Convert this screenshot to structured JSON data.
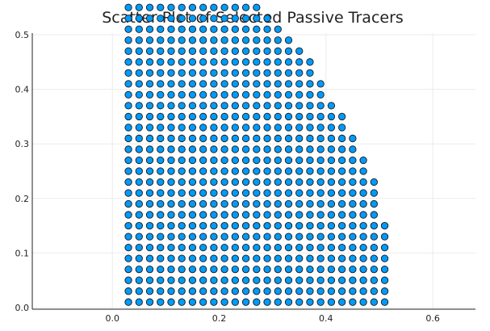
{
  "chart_data": {
    "type": "scatter",
    "title": "Scatter Plot of Selected Passive Tracers",
    "xlabel": "",
    "ylabel": "",
    "xlim": [
      -0.15,
      0.68
    ],
    "ylim": [
      -0.003,
      0.503
    ],
    "x_ticks": [
      0.0,
      0.2,
      0.4,
      0.6
    ],
    "x_tick_labels": [
      "0.0",
      "0.2",
      "0.4",
      "0.6"
    ],
    "y_ticks": [
      0.0,
      0.1,
      0.2,
      0.3,
      0.4,
      0.5
    ],
    "y_tick_labels": [
      "0.0",
      "0.1",
      "0.2",
      "0.3",
      "0.4",
      "0.5"
    ],
    "grid": true,
    "legend": "none",
    "marker_color": "#009af9",
    "grid_points": {
      "x_start": 0.03,
      "y_start": 0.01,
      "step": 0.02,
      "x_max_per_row": [
        0.51,
        0.51,
        0.51,
        0.51,
        0.51,
        0.51,
        0.51,
        0.51,
        0.49,
        0.49,
        0.49,
        0.49,
        0.47,
        0.47,
        0.45,
        0.45,
        0.43,
        0.43,
        0.41,
        0.39,
        0.39,
        0.37,
        0.37,
        0.35,
        0.33,
        0.31,
        0.29,
        0.27
      ]
    }
  }
}
